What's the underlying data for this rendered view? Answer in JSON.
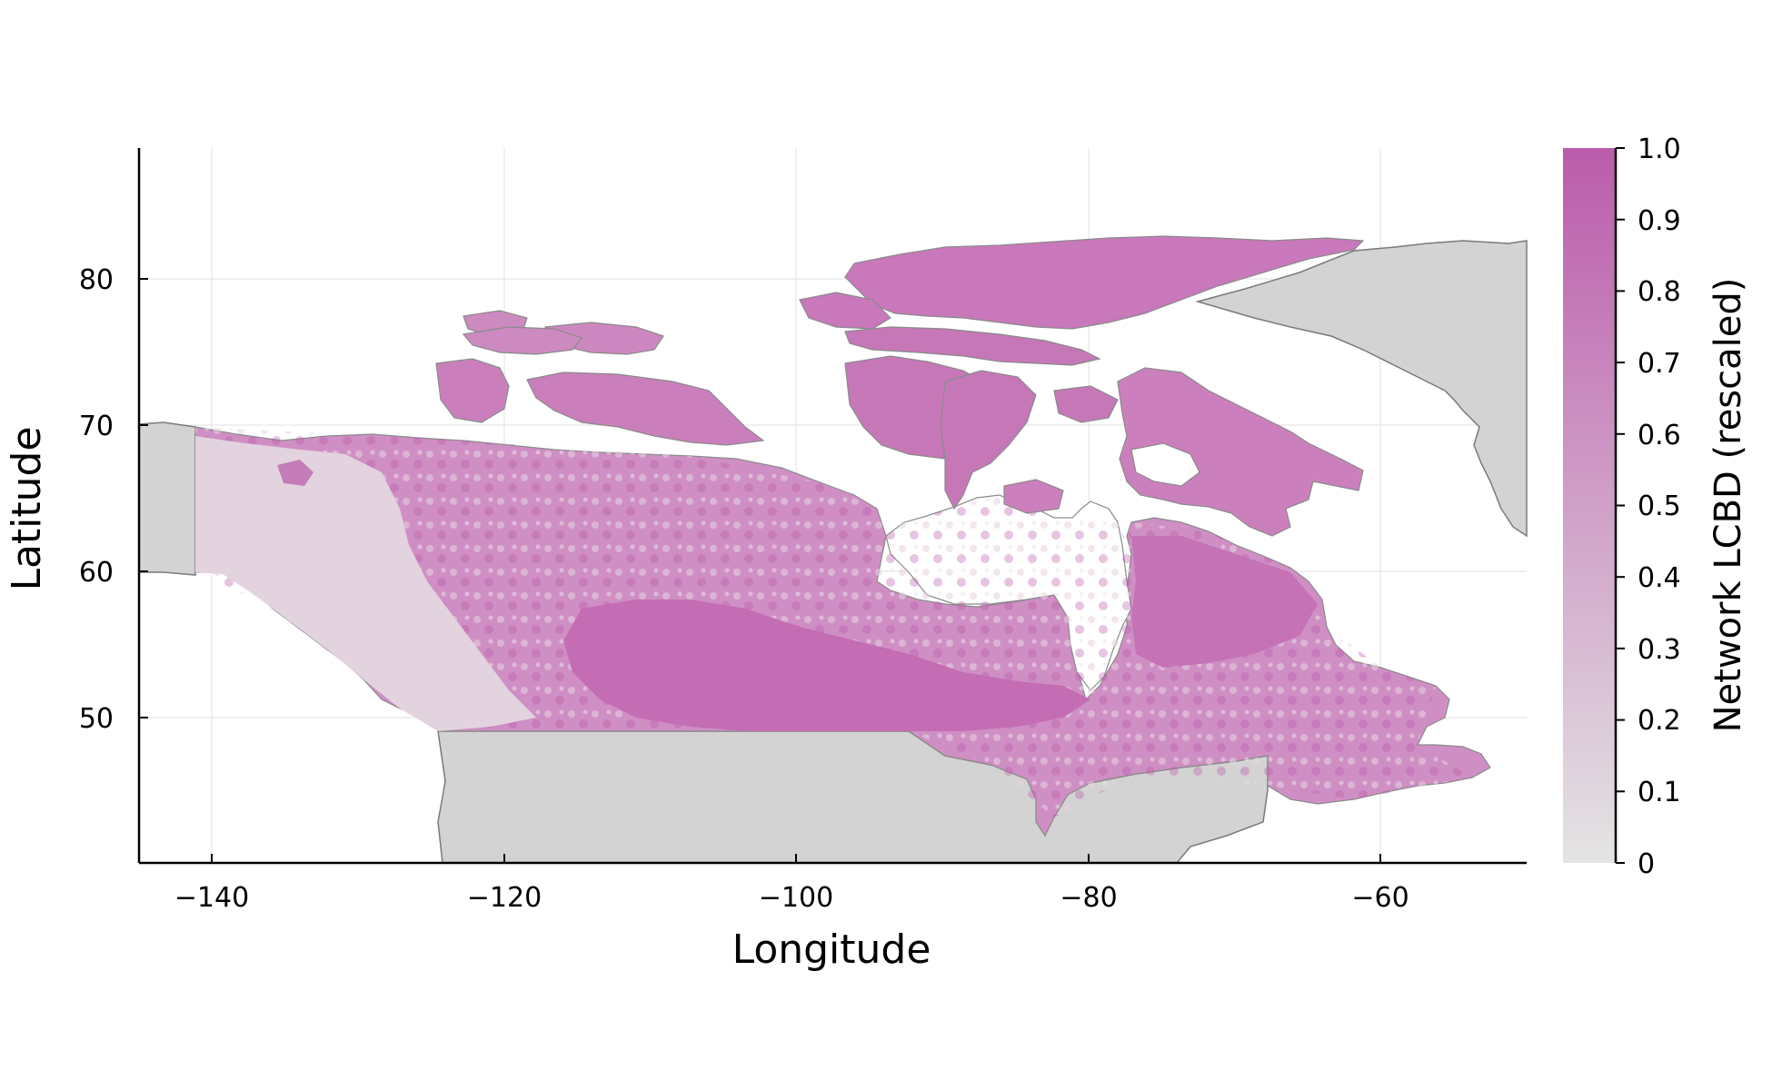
{
  "map": {
    "xlabel": "Longitude",
    "ylabel": "Latitude",
    "x_ticks": [
      "−140",
      "−120",
      "−100",
      "−80",
      "−60"
    ],
    "y_ticks": [
      "50",
      "60",
      "70",
      "80"
    ],
    "xlim": [
      -145,
      -50
    ],
    "ylim": [
      40,
      89
    ],
    "grid": true
  },
  "colorbar": {
    "title": "Network LCBD (rescaled)",
    "ticks": [
      "0",
      "0.1",
      "0.2",
      "0.3",
      "0.4",
      "0.5",
      "0.6",
      "0.7",
      "0.8",
      "0.9",
      "1.0"
    ],
    "range": [
      0,
      1
    ],
    "color_low": "#e4e4e4",
    "color_high": "#bb5cab"
  },
  "colors": {
    "land_background": "#d3d3d3",
    "coastline": "#7a7a7a",
    "grid": "#e6e6e6"
  }
}
